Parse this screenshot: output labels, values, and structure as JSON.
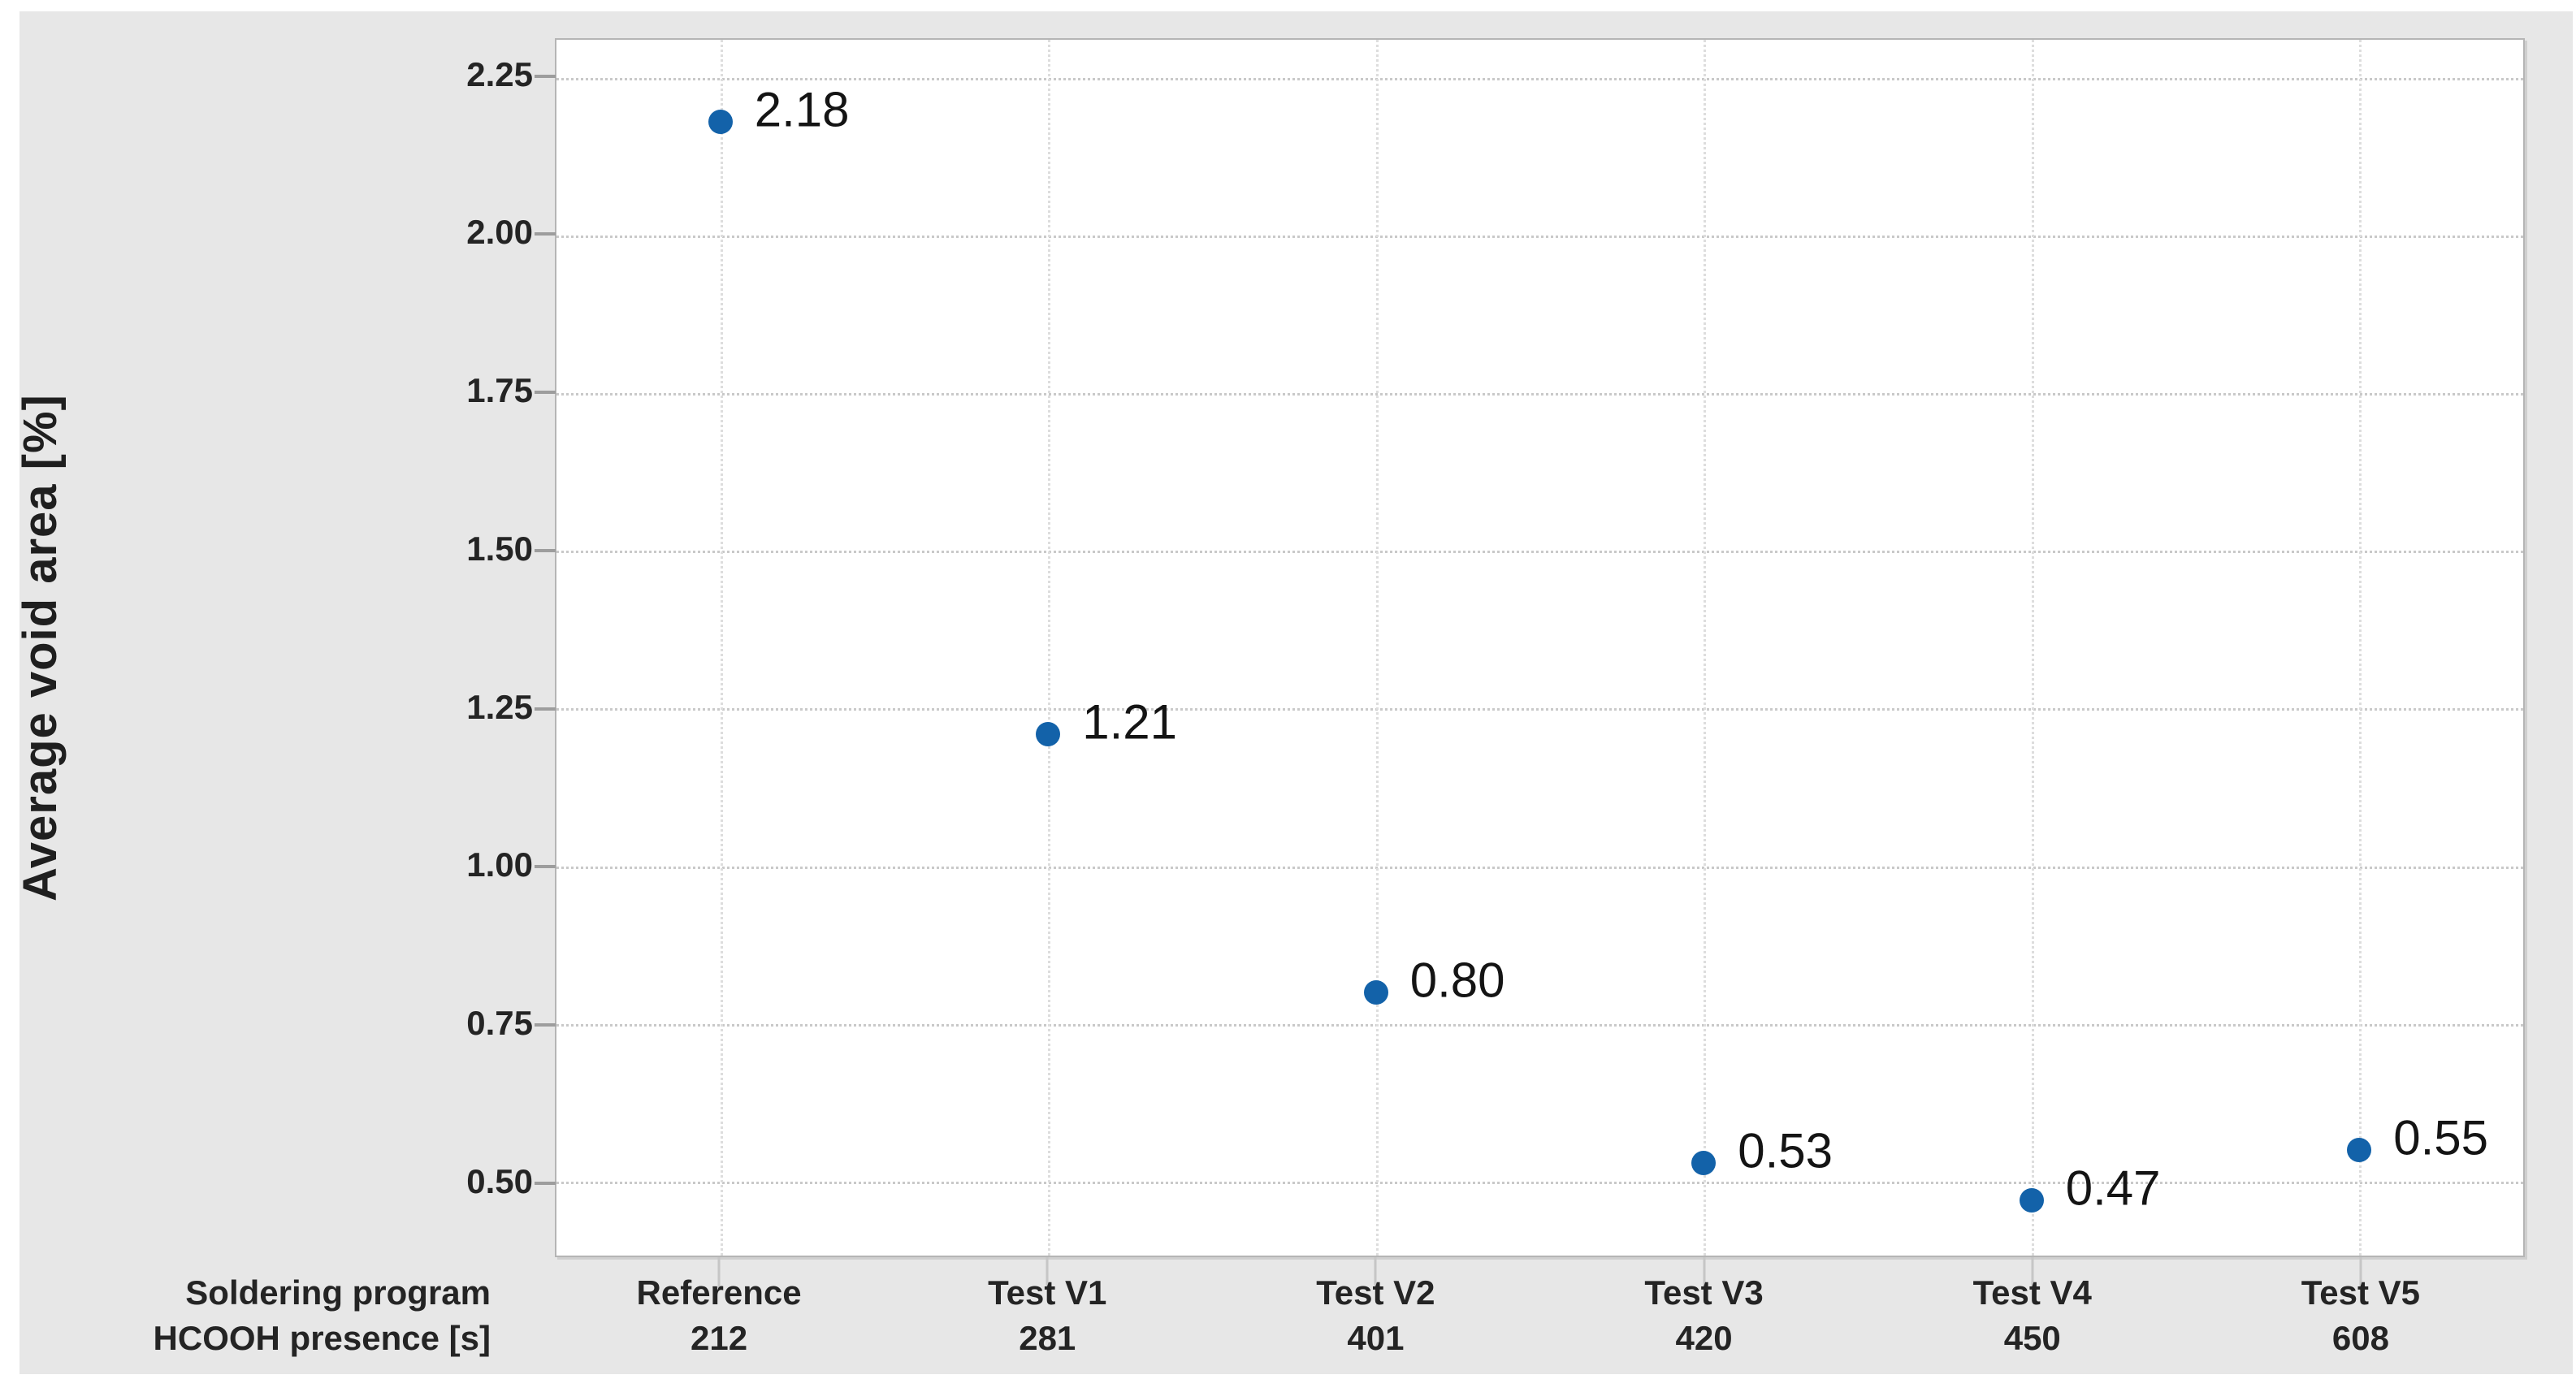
{
  "chart_data": {
    "type": "scatter",
    "title": "",
    "ylabel": "Average void area [%]",
    "xlabel_rows": [
      "Soldering program",
      "HCOOH presence [s]"
    ],
    "categories": [
      "Reference",
      "Test V1",
      "Test V2",
      "Test V3",
      "Test V4",
      "Test V5"
    ],
    "hcooh_presence_s": [
      "212",
      "281",
      "401",
      "420",
      "450",
      "608"
    ],
    "series": [
      {
        "name": "Average void area [%]",
        "values": [
          2.18,
          1.21,
          0.8,
          0.53,
          0.47,
          0.55
        ]
      }
    ],
    "point_labels": [
      "2.18",
      "1.21",
      "0.80",
      "0.53",
      "0.47",
      "0.55"
    ],
    "y_tick_labels": [
      "2.25",
      "2.00",
      "1.75",
      "1.50",
      "1.25",
      "1.00",
      "0.75",
      "0.50"
    ],
    "y_tick_values": [
      2.25,
      2.0,
      1.75,
      1.5,
      1.25,
      1.0,
      0.75,
      0.5
    ],
    "ylim": [
      0.383,
      2.31
    ],
    "grid": {
      "horizontal": "dotted",
      "vertical": "dotted"
    },
    "legend_position": "none",
    "colors": {
      "marker": "#1362a9",
      "panel_bg": "#e7e7e7",
      "plot_bg": "#ffffff",
      "grid_h": "#c9c9c9",
      "grid_v": "#dddddd",
      "text": "#242424"
    }
  }
}
